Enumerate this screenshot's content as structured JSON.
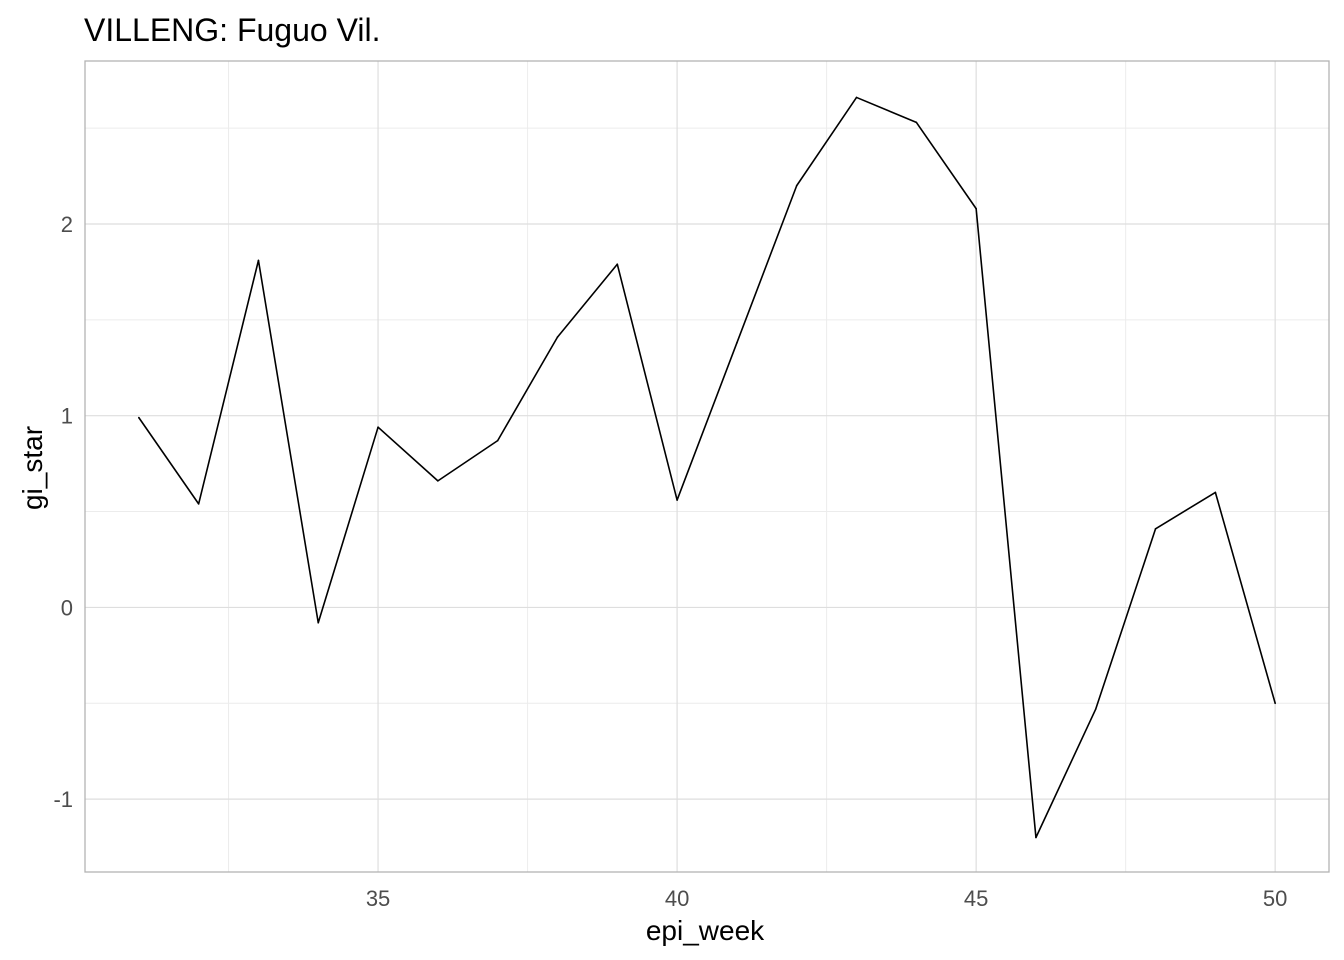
{
  "chart_data": {
    "type": "line",
    "title": "VILLENG: Fuguo Vil.",
    "xlabel": "epi_week",
    "ylabel": "gi_star",
    "xlim": [
      30.1,
      50.9
    ],
    "ylim": [
      -1.38,
      2.85
    ],
    "x_ticks": [
      35,
      40,
      45,
      50
    ],
    "x_minor": [
      32.5,
      37.5,
      42.5,
      47.5
    ],
    "y_ticks": [
      -1,
      0,
      1,
      2
    ],
    "y_minor": [
      -0.5,
      0.5,
      1.5,
      2.5
    ],
    "grid": true,
    "line_color": "#000000",
    "grid_color": "#dedede",
    "x": [
      31,
      32,
      33,
      34,
      35,
      36,
      37,
      38,
      39,
      40,
      41,
      42,
      43,
      44,
      45,
      46,
      47,
      48,
      49,
      50
    ],
    "y": [
      0.99,
      0.54,
      1.81,
      -0.08,
      0.94,
      0.66,
      0.87,
      1.41,
      1.79,
      0.56,
      1.38,
      2.2,
      2.66,
      2.53,
      2.08,
      -1.2,
      -0.53,
      0.41,
      0.6,
      -0.5
    ]
  }
}
